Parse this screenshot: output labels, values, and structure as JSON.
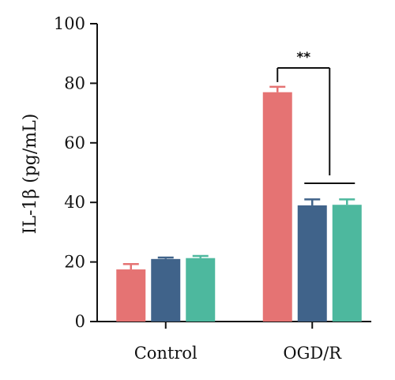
{
  "chart_data": {
    "type": "bar",
    "title": "",
    "xlabel": "",
    "ylabel": "IL-1β (pg/mL)",
    "ylim": [
      0,
      100
    ],
    "yticks": [
      0,
      20,
      40,
      60,
      80,
      100
    ],
    "grid": false,
    "categories": [
      "Control",
      "OGD/R"
    ],
    "series": [
      {
        "values": [
          17.5,
          77
        ],
        "errors": [
          1.8,
          1.8
        ],
        "color": "#e57373"
      },
      {
        "values": [
          21,
          39
        ],
        "errors": [
          0.5,
          2.0
        ],
        "color": "#40638a"
      },
      {
        "values": [
          21.3,
          39.2
        ],
        "errors": [
          0.7,
          1.8
        ],
        "color": "#4db89e"
      }
    ],
    "annotations": [
      {
        "text": "**",
        "group": "OGD/R"
      }
    ]
  }
}
